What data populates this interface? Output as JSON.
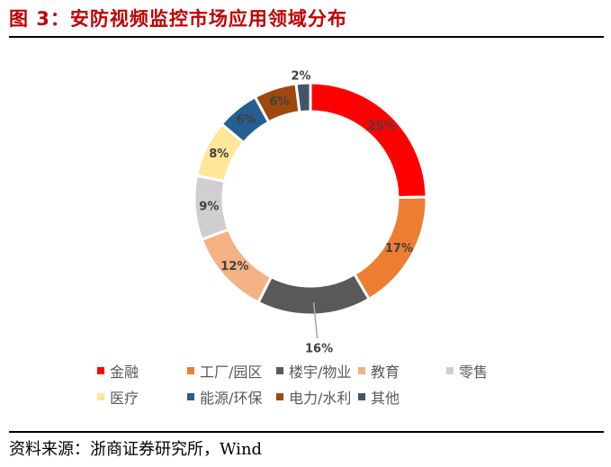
{
  "header": {
    "title": "图 3：安防视频监控市场应用领域分布"
  },
  "footer": {
    "source": "资料来源：浙商证券研究所，Wind"
  },
  "chart_data": {
    "type": "pie",
    "subtype": "donut",
    "title": "图 3：安防视频监控市场应用领域分布",
    "categories": [
      "金融",
      "工厂/园区",
      "楼宇/物业",
      "教育",
      "零售",
      "医疗",
      "能源/环保",
      "电力/水利",
      "其他"
    ],
    "values": [
      25,
      17,
      16,
      12,
      9,
      8,
      6,
      6,
      2
    ],
    "labels": [
      "25%",
      "17%",
      "16%",
      "12%",
      "9%",
      "8%",
      "6%",
      "6%",
      "2%"
    ],
    "colors": [
      "#ff0000",
      "#ed7d31",
      "#595959",
      "#f4b183",
      "#d0cece",
      "#ffe699",
      "#255e91",
      "#9e480e",
      "#44546a"
    ],
    "legend_position": "bottom",
    "start_angle_deg": 0,
    "direction": "clockwise"
  },
  "legend": {
    "items": [
      {
        "label": "金融",
        "color": "#ff0000"
      },
      {
        "label": "工厂/园区",
        "color": "#ed7d31"
      },
      {
        "label": "楼宇/物业",
        "color": "#595959"
      },
      {
        "label": "教育",
        "color": "#f4b183"
      },
      {
        "label": "零售",
        "color": "#d0cece"
      },
      {
        "label": "医疗",
        "color": "#ffe699"
      },
      {
        "label": "能源/环保",
        "color": "#255e91"
      },
      {
        "label": "电力/水利",
        "color": "#9e480e"
      },
      {
        "label": "其他",
        "color": "#44546a"
      }
    ]
  }
}
